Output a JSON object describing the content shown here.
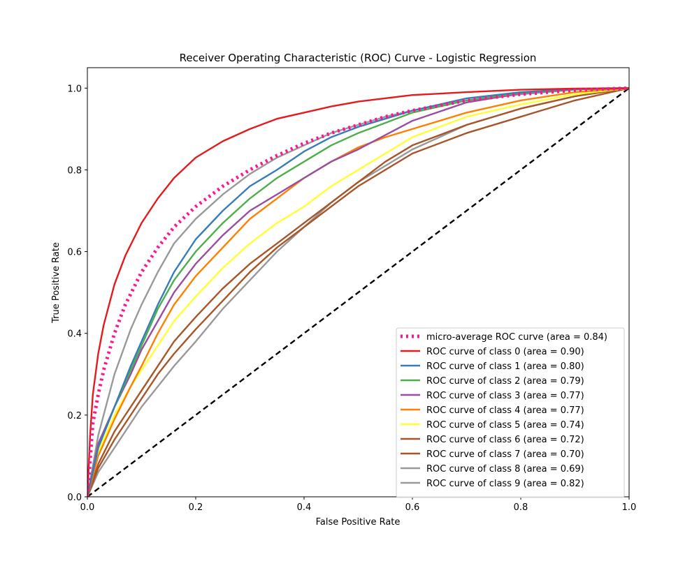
{
  "chart_data": {
    "type": "line",
    "title": "Receiver Operating Characteristic (ROC) Curve - Logistic Regression",
    "xlabel": "False Positive Rate",
    "ylabel": "True Positive Rate",
    "xlim": [
      0.0,
      1.0
    ],
    "ylim": [
      0.0,
      1.05
    ],
    "xticks": [
      "0.0",
      "0.2",
      "0.4",
      "0.6",
      "0.8",
      "1.0"
    ],
    "yticks": [
      "0.0",
      "0.2",
      "0.4",
      "0.6",
      "0.8",
      "1.0"
    ],
    "grid": false,
    "legend_position": "lower-right",
    "series": [
      {
        "name": "micro-average ROC curve (area = 0.84)",
        "color": "#ff1493",
        "style": "dotted",
        "x": [
          0,
          0.01,
          0.02,
          0.03,
          0.05,
          0.07,
          0.1,
          0.13,
          0.16,
          0.2,
          0.25,
          0.3,
          0.35,
          0.4,
          0.45,
          0.5,
          0.55,
          0.6,
          0.7,
          0.8,
          0.9,
          1.0
        ],
        "y": [
          0,
          0.18,
          0.25,
          0.31,
          0.4,
          0.47,
          0.55,
          0.61,
          0.66,
          0.71,
          0.76,
          0.8,
          0.835,
          0.865,
          0.89,
          0.91,
          0.93,
          0.945,
          0.97,
          0.985,
          0.995,
          1.0
        ]
      },
      {
        "name": "ROC curve of class 0 (area = 0.90)",
        "color": "#e41a1c",
        "style": "solid",
        "x": [
          0,
          0.005,
          0.01,
          0.02,
          0.03,
          0.05,
          0.07,
          0.1,
          0.13,
          0.16,
          0.2,
          0.25,
          0.3,
          0.35,
          0.4,
          0.45,
          0.5,
          0.6,
          0.7,
          0.8,
          0.9,
          1.0
        ],
        "y": [
          0,
          0.15,
          0.25,
          0.35,
          0.42,
          0.52,
          0.59,
          0.67,
          0.73,
          0.78,
          0.83,
          0.87,
          0.9,
          0.925,
          0.94,
          0.955,
          0.967,
          0.983,
          0.99,
          0.996,
          0.999,
          1.0
        ]
      },
      {
        "name": "ROC curve of class 1 (area = 0.80)",
        "color": "#377eb8",
        "style": "solid",
        "x": [
          0,
          0.02,
          0.05,
          0.08,
          0.1,
          0.13,
          0.16,
          0.2,
          0.25,
          0.3,
          0.35,
          0.4,
          0.45,
          0.5,
          0.55,
          0.6,
          0.7,
          0.8,
          0.9,
          1.0
        ],
        "y": [
          0,
          0.12,
          0.22,
          0.32,
          0.38,
          0.47,
          0.55,
          0.63,
          0.7,
          0.76,
          0.8,
          0.845,
          0.88,
          0.905,
          0.925,
          0.945,
          0.975,
          0.99,
          0.998,
          1.0
        ]
      },
      {
        "name": "ROC curve of class 2 (area = 0.79)",
        "color": "#4daf4a",
        "style": "solid",
        "x": [
          0,
          0.02,
          0.05,
          0.08,
          0.1,
          0.13,
          0.16,
          0.2,
          0.25,
          0.3,
          0.35,
          0.4,
          0.45,
          0.5,
          0.55,
          0.6,
          0.7,
          0.8,
          0.9,
          1.0
        ],
        "y": [
          0,
          0.12,
          0.22,
          0.31,
          0.37,
          0.46,
          0.53,
          0.6,
          0.67,
          0.73,
          0.78,
          0.82,
          0.86,
          0.89,
          0.915,
          0.94,
          0.97,
          0.988,
          0.997,
          1.0
        ]
      },
      {
        "name": "ROC curve of class 3 (area = 0.77)",
        "color": "#984ea3",
        "style": "solid",
        "x": [
          0,
          0.02,
          0.05,
          0.08,
          0.1,
          0.13,
          0.16,
          0.2,
          0.25,
          0.3,
          0.35,
          0.4,
          0.45,
          0.5,
          0.55,
          0.6,
          0.7,
          0.8,
          0.9,
          1.0
        ],
        "y": [
          0,
          0.13,
          0.22,
          0.3,
          0.36,
          0.43,
          0.5,
          0.57,
          0.64,
          0.7,
          0.74,
          0.78,
          0.82,
          0.85,
          0.885,
          0.92,
          0.965,
          0.987,
          0.997,
          1.0
        ]
      },
      {
        "name": "ROC curve of class 4 (area = 0.77)",
        "color": "#ff7f00",
        "style": "solid",
        "x": [
          0,
          0.02,
          0.05,
          0.08,
          0.1,
          0.13,
          0.16,
          0.2,
          0.25,
          0.3,
          0.35,
          0.4,
          0.45,
          0.5,
          0.55,
          0.6,
          0.7,
          0.8,
          0.9,
          1.0
        ],
        "y": [
          0,
          0.1,
          0.19,
          0.27,
          0.32,
          0.4,
          0.47,
          0.54,
          0.61,
          0.68,
          0.73,
          0.78,
          0.82,
          0.855,
          0.88,
          0.9,
          0.94,
          0.97,
          0.99,
          1.0
        ]
      },
      {
        "name": "ROC curve of class 5 (area = 0.74)",
        "color": "#ffff33",
        "style": "solid",
        "x": [
          0,
          0.02,
          0.05,
          0.08,
          0.1,
          0.13,
          0.16,
          0.2,
          0.25,
          0.3,
          0.35,
          0.4,
          0.45,
          0.5,
          0.55,
          0.6,
          0.7,
          0.8,
          0.9,
          1.0
        ],
        "y": [
          0,
          0.11,
          0.2,
          0.27,
          0.31,
          0.37,
          0.43,
          0.49,
          0.56,
          0.62,
          0.67,
          0.71,
          0.76,
          0.8,
          0.84,
          0.88,
          0.93,
          0.96,
          0.985,
          1.0
        ]
      },
      {
        "name": "ROC curve of class 6 (area = 0.72)",
        "color": "#a65628",
        "style": "solid",
        "x": [
          0,
          0.02,
          0.05,
          0.08,
          0.1,
          0.13,
          0.16,
          0.2,
          0.25,
          0.3,
          0.35,
          0.4,
          0.45,
          0.5,
          0.55,
          0.6,
          0.7,
          0.8,
          0.9,
          1.0
        ],
        "y": [
          0,
          0.08,
          0.16,
          0.22,
          0.26,
          0.32,
          0.38,
          0.44,
          0.51,
          0.57,
          0.62,
          0.67,
          0.72,
          0.77,
          0.82,
          0.86,
          0.91,
          0.95,
          0.98,
          1.0
        ]
      },
      {
        "name": "ROC curve of class 7 (area = 0.70)",
        "color": "#a65628",
        "style": "solid",
        "x": [
          0,
          0.02,
          0.05,
          0.08,
          0.1,
          0.13,
          0.16,
          0.2,
          0.25,
          0.3,
          0.35,
          0.4,
          0.45,
          0.5,
          0.55,
          0.6,
          0.7,
          0.8,
          0.9,
          1.0
        ],
        "y": [
          0,
          0.07,
          0.14,
          0.2,
          0.24,
          0.3,
          0.35,
          0.41,
          0.48,
          0.55,
          0.61,
          0.66,
          0.71,
          0.76,
          0.8,
          0.84,
          0.89,
          0.93,
          0.97,
          1.0
        ]
      },
      {
        "name": "ROC curve of class 8 (area = 0.69)",
        "color": "#999999",
        "style": "solid",
        "x": [
          0,
          0.02,
          0.05,
          0.08,
          0.1,
          0.13,
          0.16,
          0.2,
          0.25,
          0.3,
          0.35,
          0.4,
          0.45,
          0.5,
          0.55,
          0.6,
          0.7,
          0.8,
          0.9,
          1.0
        ],
        "y": [
          0,
          0.06,
          0.12,
          0.18,
          0.22,
          0.27,
          0.32,
          0.38,
          0.46,
          0.53,
          0.6,
          0.66,
          0.72,
          0.77,
          0.81,
          0.85,
          0.91,
          0.95,
          0.98,
          1.0
        ]
      },
      {
        "name": "ROC curve of class 9 (area = 0.82)",
        "color": "#999999",
        "style": "solid",
        "x": [
          0,
          0.02,
          0.05,
          0.08,
          0.1,
          0.13,
          0.16,
          0.2,
          0.25,
          0.3,
          0.35,
          0.4,
          0.45,
          0.5,
          0.55,
          0.6,
          0.7,
          0.8,
          0.9,
          1.0
        ],
        "y": [
          0,
          0.15,
          0.3,
          0.41,
          0.47,
          0.55,
          0.62,
          0.68,
          0.74,
          0.79,
          0.83,
          0.86,
          0.89,
          0.91,
          0.93,
          0.945,
          0.97,
          0.985,
          0.996,
          1.0
        ]
      }
    ],
    "reference_line": {
      "x": [
        0,
        1
      ],
      "y": [
        0,
        1
      ],
      "color": "#000000",
      "style": "dashed"
    }
  }
}
